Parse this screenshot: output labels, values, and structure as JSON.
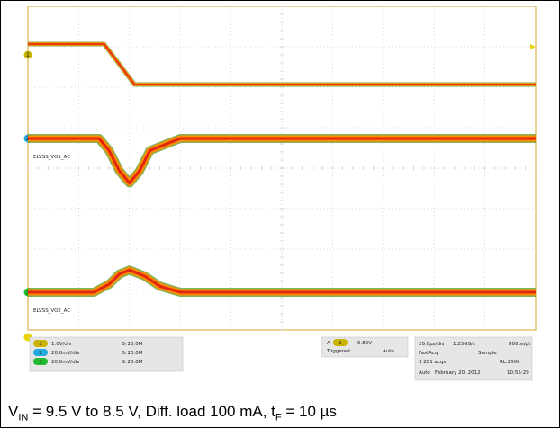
{
  "chart_data": {
    "type": "line",
    "title": "",
    "xlabel": "",
    "ylabel": "",
    "grid": true,
    "x_divisions": 10,
    "y_divisions": 8,
    "time_per_div_us": 20.0,
    "x_range_us": [
      0,
      200
    ],
    "series": [
      {
        "name": "",
        "channel": "1",
        "scale": "1.0V/div",
        "color": "#c8b400",
        "x": [
          0,
          30,
          42,
          200
        ],
        "y": [
          9.5,
          9.5,
          8.5,
          8.5
        ]
      },
      {
        "name": "ELVSS_VO1_AC",
        "channel": "2",
        "scale": "20.0mV/div",
        "color": "#22aadd",
        "x": [
          0,
          28,
          32,
          36,
          40,
          44,
          48,
          60,
          200
        ],
        "y": [
          0,
          0,
          -6,
          -16,
          -22,
          -16,
          -6,
          0,
          0
        ]
      },
      {
        "name": "ELVSS_VO2_AC",
        "channel": "3",
        "scale": "20.0mV/div",
        "color": "#22bb33",
        "x": [
          0,
          26,
          32,
          36,
          40,
          46,
          52,
          60,
          200
        ],
        "y": [
          0,
          0,
          4,
          9,
          11,
          8,
          3,
          0,
          0
        ]
      }
    ],
    "legend": {
      "rows": [
        {
          "channel": "1",
          "scale": "1.0V/div",
          "bw_label": "Bᵢ 20.0M"
        },
        {
          "channel": "2",
          "scale": "20.0mV/div",
          "bw_label": "Bᵢ 20.0M"
        },
        {
          "channel": "3",
          "scale": "20.0mV/div",
          "bw_label": "Bᵢ 20.0M"
        }
      ]
    },
    "trigger": {
      "channel": "A",
      "src": "1",
      "slope": "falling",
      "level": "6.82V",
      "state": "Triggered",
      "mode": "Auto"
    },
    "acquisition": {
      "timebase": "20.0µs/div",
      "sample_rate": "1.25GS/s",
      "resolution": "800ps/pt",
      "mode": "FastAcq",
      "sampling": "Sample",
      "acqs": "3 281 acqs",
      "record_length": "RL:250k",
      "run": "Auto",
      "date": "February 20, 2012",
      "time": "10:55:29"
    }
  },
  "caption": {
    "v_in_label": "V",
    "v_in_sub": "IN",
    "text1": " = 9.5 V to 8.5 V, Diff. load 100 mA, t",
    "t_sub": "F",
    "text2": " = 10 µs"
  },
  "colors": {
    "trace_outer": "#5a9a1e",
    "trace_mid": "#ff8a00",
    "trace_core": "#e02810",
    "grid": "#cfcfcf",
    "bezel": "#e8c070",
    "panel": "#e6e6e6"
  }
}
